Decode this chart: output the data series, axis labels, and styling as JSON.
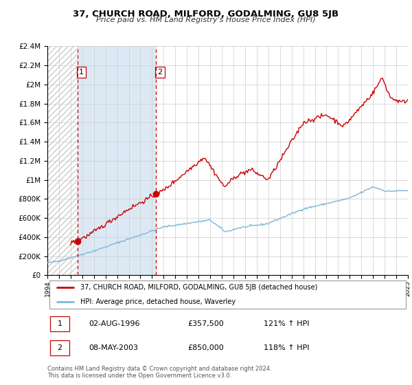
{
  "title": "37, CHURCH ROAD, MILFORD, GODALMING, GU8 5JB",
  "subtitle": "Price paid vs. HM Land Registry's House Price Index (HPI)",
  "bg_color": "#ffffff",
  "plot_bg_color": "#ffffff",
  "grid_color": "#cccccc",
  "sale1_date": 1996.58,
  "sale1_price": 357500,
  "sale2_date": 2003.35,
  "sale2_price": 850000,
  "sale1_date_str": "02-AUG-1996",
  "sale1_price_str": "£357,500",
  "sale1_hpi_str": "121% ↑ HPI",
  "sale2_date_str": "08-MAY-2003",
  "sale2_price_str": "£850,000",
  "sale2_hpi_str": "118% ↑ HPI",
  "hpi_line_color": "#7ab8d9",
  "price_line_color": "#cc0000",
  "marker_color": "#cc0000",
  "dashed_line_color": "#cc0000",
  "shade_color": "#dce9f5",
  "hatch_color": "#cccccc",
  "ylim": [
    0,
    2400000
  ],
  "xlim_start": 1994,
  "xlim_end": 2025,
  "legend_label_price": "37, CHURCH ROAD, MILFORD, GODALMING, GU8 5JB (detached house)",
  "legend_label_hpi": "HPI: Average price, detached house, Waverley",
  "footer1": "Contains HM Land Registry data © Crown copyright and database right 2024.",
  "footer2": "This data is licensed under the Open Government Licence v3.0."
}
